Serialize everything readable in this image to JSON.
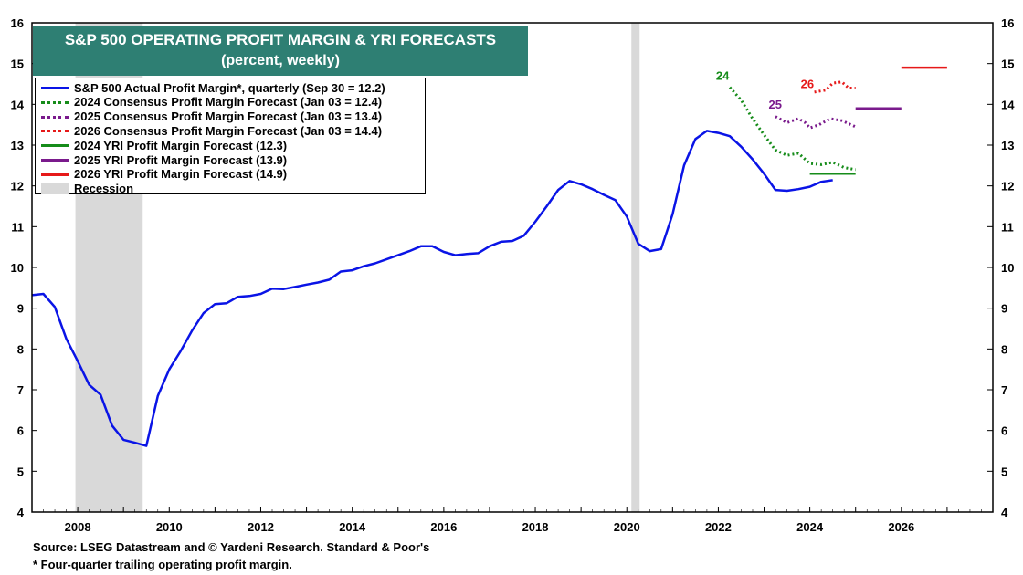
{
  "title": {
    "line1": "S&P 500 OPERATING PROFIT MARGIN & YRI FORECASTS",
    "line2": "(percent, weekly)"
  },
  "colors": {
    "actual": "#0a14e6",
    "f2024": "#168c1a",
    "f2025": "#7a1a8c",
    "f2026": "#e61919",
    "recession": "#d9d9d9",
    "title_bg": "#2e7f73"
  },
  "legend": [
    {
      "label": "S&P 500 Actual Profit Margin*, quarterly (Sep 30 = 12.2)",
      "style": "solid",
      "color": "#0a14e6"
    },
    {
      "label": "2024 Consensus Profit Margin Forecast (Jan 03 = 12.4)",
      "style": "dotted",
      "color": "#168c1a"
    },
    {
      "label": "2025 Consensus Profit Margin Forecast (Jan 03 = 13.4)",
      "style": "dotted",
      "color": "#7a1a8c"
    },
    {
      "label": "2026 Consensus Profit Margin Forecast (Jan 03 = 14.4)",
      "style": "dotted",
      "color": "#e61919"
    },
    {
      "label": "2024 YRI Profit Margin Forecast (12.3)",
      "style": "solid",
      "color": "#168c1a"
    },
    {
      "label": "2025 YRI Profit Margin Forecast (13.9)",
      "style": "solid",
      "color": "#7a1a8c"
    },
    {
      "label": "2026 YRI Profit Margin Forecast (14.9)",
      "style": "solid",
      "color": "#e61919"
    },
    {
      "label": "Recession",
      "style": "box",
      "color": "#d9d9d9"
    }
  ],
  "footer": {
    "source": "Source: LSEG Datastream and © Yardeni Research. Standard & Poor's",
    "note": "* Four-quarter trailing operating profit margin."
  },
  "chart_data": {
    "type": "line",
    "xlim": [
      2007.0,
      2028.0
    ],
    "ylim": [
      4,
      16
    ],
    "x_ticks": [
      2008,
      2010,
      2012,
      2014,
      2016,
      2018,
      2020,
      2022,
      2024,
      2026
    ],
    "y_ticks": [
      4,
      5,
      6,
      7,
      8,
      9,
      10,
      11,
      12,
      13,
      14,
      15,
      16
    ],
    "grid": false,
    "dual_y_axis": true,
    "legend_position": "top-left",
    "recessions": [
      [
        2007.95,
        2009.42
      ],
      [
        2020.1,
        2020.28
      ]
    ],
    "annotations": [
      {
        "text": "24",
        "x": 2021.95,
        "y": 14.6,
        "color": "#168c1a"
      },
      {
        "text": "25",
        "x": 2023.1,
        "y": 13.9,
        "color": "#7a1a8c"
      },
      {
        "text": "26",
        "x": 2023.8,
        "y": 14.4,
        "color": "#e61919"
      }
    ],
    "series": [
      {
        "name": "S&P 500 Actual Profit Margin*, quarterly (Sep 30 = 12.2)",
        "style": "solid",
        "color": "#0a14e6",
        "points": [
          [
            2007.0,
            9.32
          ],
          [
            2007.25,
            9.35
          ],
          [
            2007.5,
            9.03
          ],
          [
            2007.75,
            8.25
          ],
          [
            2008.0,
            7.7
          ],
          [
            2008.25,
            7.12
          ],
          [
            2008.5,
            6.88
          ],
          [
            2008.75,
            6.12
          ],
          [
            2009.0,
            5.77
          ],
          [
            2009.25,
            5.7
          ],
          [
            2009.5,
            5.62
          ],
          [
            2009.75,
            6.85
          ],
          [
            2010.0,
            7.5
          ],
          [
            2010.25,
            7.95
          ],
          [
            2010.5,
            8.45
          ],
          [
            2010.75,
            8.88
          ],
          [
            2011.0,
            9.1
          ],
          [
            2011.25,
            9.12
          ],
          [
            2011.5,
            9.28
          ],
          [
            2011.75,
            9.3
          ],
          [
            2012.0,
            9.35
          ],
          [
            2012.25,
            9.48
          ],
          [
            2012.5,
            9.47
          ],
          [
            2012.75,
            9.52
          ],
          [
            2013.0,
            9.58
          ],
          [
            2013.25,
            9.63
          ],
          [
            2013.5,
            9.7
          ],
          [
            2013.75,
            9.9
          ],
          [
            2014.0,
            9.93
          ],
          [
            2014.25,
            10.03
          ],
          [
            2014.5,
            10.1
          ],
          [
            2014.75,
            10.2
          ],
          [
            2015.0,
            10.3
          ],
          [
            2015.25,
            10.4
          ],
          [
            2015.5,
            10.52
          ],
          [
            2015.75,
            10.52
          ],
          [
            2016.0,
            10.38
          ],
          [
            2016.25,
            10.3
          ],
          [
            2016.5,
            10.33
          ],
          [
            2016.75,
            10.35
          ],
          [
            2017.0,
            10.52
          ],
          [
            2017.25,
            10.63
          ],
          [
            2017.5,
            10.65
          ],
          [
            2017.75,
            10.78
          ],
          [
            2018.0,
            11.12
          ],
          [
            2018.25,
            11.5
          ],
          [
            2018.5,
            11.9
          ],
          [
            2018.75,
            12.12
          ],
          [
            2019.0,
            12.04
          ],
          [
            2019.25,
            11.92
          ],
          [
            2019.5,
            11.78
          ],
          [
            2019.75,
            11.65
          ],
          [
            2020.0,
            11.25
          ],
          [
            2020.25,
            10.58
          ],
          [
            2020.5,
            10.4
          ],
          [
            2020.75,
            10.45
          ],
          [
            2021.0,
            11.3
          ],
          [
            2021.25,
            12.5
          ],
          [
            2021.5,
            13.15
          ],
          [
            2021.75,
            13.35
          ],
          [
            2022.0,
            13.3
          ],
          [
            2022.25,
            13.22
          ],
          [
            2022.5,
            12.96
          ],
          [
            2022.75,
            12.65
          ],
          [
            2023.0,
            12.3
          ],
          [
            2023.25,
            11.9
          ],
          [
            2023.5,
            11.88
          ],
          [
            2023.75,
            11.92
          ],
          [
            2024.0,
            11.98
          ],
          [
            2024.25,
            12.1
          ],
          [
            2024.5,
            12.14
          ]
        ]
      },
      {
        "name": "2024 Consensus Profit Margin Forecast (Jan 03 = 12.4)",
        "style": "dotted",
        "color": "#168c1a",
        "points": [
          [
            2022.25,
            14.42
          ],
          [
            2022.5,
            14.1
          ],
          [
            2022.75,
            13.65
          ],
          [
            2023.0,
            13.25
          ],
          [
            2023.25,
            12.88
          ],
          [
            2023.5,
            12.75
          ],
          [
            2023.75,
            12.8
          ],
          [
            2024.0,
            12.55
          ],
          [
            2024.25,
            12.52
          ],
          [
            2024.5,
            12.58
          ],
          [
            2024.75,
            12.45
          ],
          [
            2025.0,
            12.4
          ]
        ]
      },
      {
        "name": "2025 Consensus Profit Margin Forecast (Jan 03 = 13.4)",
        "style": "dotted",
        "color": "#7a1a8c",
        "points": [
          [
            2023.25,
            13.7
          ],
          [
            2023.5,
            13.55
          ],
          [
            2023.75,
            13.65
          ],
          [
            2023.9,
            13.55
          ],
          [
            2024.0,
            13.42
          ],
          [
            2024.2,
            13.5
          ],
          [
            2024.45,
            13.65
          ],
          [
            2024.7,
            13.6
          ],
          [
            2025.0,
            13.45
          ]
        ]
      },
      {
        "name": "2026 Consensus Profit Margin Forecast (Jan 03 = 14.4)",
        "style": "dotted",
        "color": "#e61919",
        "points": [
          [
            2024.1,
            14.3
          ],
          [
            2024.35,
            14.35
          ],
          [
            2024.5,
            14.52
          ],
          [
            2024.7,
            14.55
          ],
          [
            2024.85,
            14.4
          ],
          [
            2025.0,
            14.4
          ]
        ]
      },
      {
        "name": "2024 YRI Profit Margin Forecast (12.3)",
        "style": "solid",
        "color": "#168c1a",
        "points": [
          [
            2024.0,
            12.3
          ],
          [
            2025.0,
            12.3
          ]
        ]
      },
      {
        "name": "2025 YRI Profit Margin Forecast (13.9)",
        "style": "solid",
        "color": "#7a1a8c",
        "points": [
          [
            2025.0,
            13.9
          ],
          [
            2026.0,
            13.9
          ]
        ]
      },
      {
        "name": "2026 YRI Profit Margin Forecast (14.9)",
        "style": "solid",
        "color": "#e61919",
        "points": [
          [
            2026.0,
            14.9
          ],
          [
            2027.0,
            14.9
          ]
        ]
      }
    ]
  }
}
